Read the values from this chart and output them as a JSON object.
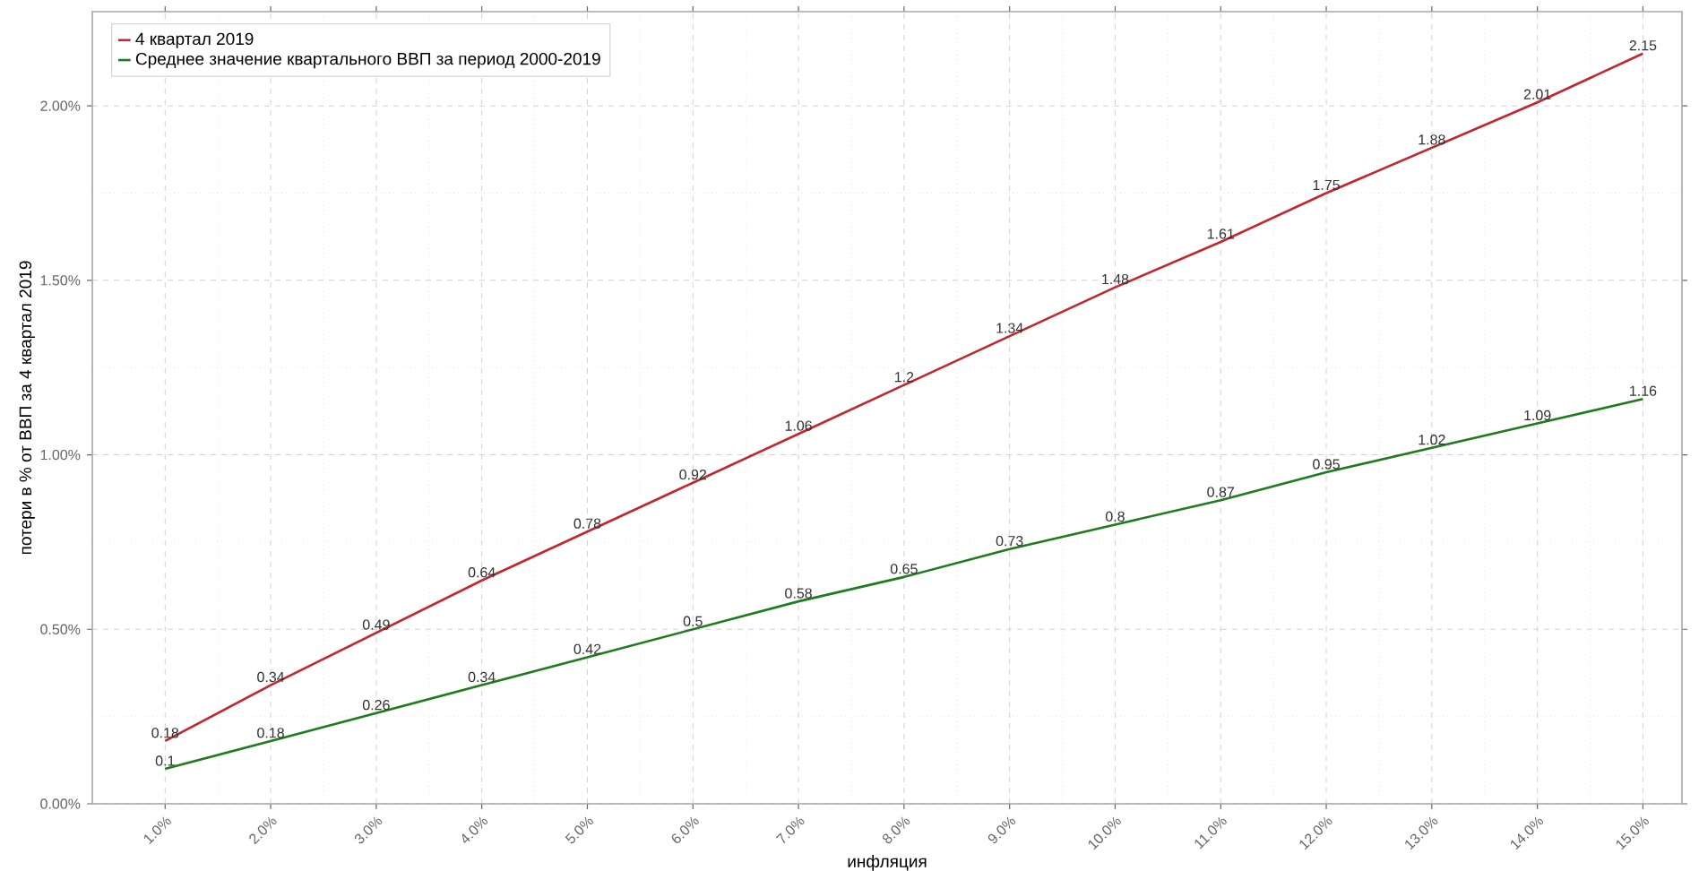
{
  "chart_data": {
    "type": "line",
    "xlabel": "инфляция",
    "ylabel": "потери в % от ВВП за 4 квартал 2019",
    "x": [
      1,
      2,
      3,
      4,
      5,
      6,
      7,
      8,
      9,
      10,
      11,
      12,
      13,
      14,
      15
    ],
    "series": [
      {
        "name": "4 квартал 2019",
        "color": "#c1272d",
        "values": [
          0.18,
          0.34,
          0.49,
          0.64,
          0.78,
          0.92,
          1.06,
          1.2,
          1.34,
          1.48,
          1.61,
          1.75,
          1.88,
          2.01,
          2.15
        ]
      },
      {
        "name": "Среднее значение квартального ВВП за период 2000-2019",
        "color": "#1e7b1e",
        "values": [
          0.1,
          0.18,
          0.26,
          0.34,
          0.42,
          0.5,
          0.58,
          0.65,
          0.73,
          0.8,
          0.87,
          0.95,
          1.02,
          1.09,
          1.16
        ]
      }
    ],
    "xlim": [
      0.31,
      15.37
    ],
    "ylim": [
      0,
      2.27
    ],
    "xticks": [
      {
        "value": 1,
        "label": "1.0%"
      },
      {
        "value": 2,
        "label": "2.0%"
      },
      {
        "value": 3,
        "label": "3.0%"
      },
      {
        "value": 4,
        "label": "4.0%"
      },
      {
        "value": 5,
        "label": "5.0%"
      },
      {
        "value": 6,
        "label": "6.0%"
      },
      {
        "value": 7,
        "label": "7.0%"
      },
      {
        "value": 8,
        "label": "8.0%"
      },
      {
        "value": 9,
        "label": "9.0%"
      },
      {
        "value": 10,
        "label": "10.0%"
      },
      {
        "value": 11,
        "label": "11.0%"
      },
      {
        "value": 12,
        "label": "12.0%"
      },
      {
        "value": 13,
        "label": "13.0%"
      },
      {
        "value": 14,
        "label": "14.0%"
      },
      {
        "value": 15,
        "label": "15.0%"
      }
    ],
    "yticks": [
      {
        "value": 0,
        "label": "0.00%"
      },
      {
        "value": 0.5,
        "label": "0.50%"
      },
      {
        "value": 1,
        "label": "1.00%"
      },
      {
        "value": 1.5,
        "label": "1.50%"
      },
      {
        "value": 2,
        "label": "2.00%"
      }
    ],
    "grid": true,
    "legend": "top left",
    "data_labels": true,
    "marker": "none",
    "line_style": "solid"
  }
}
